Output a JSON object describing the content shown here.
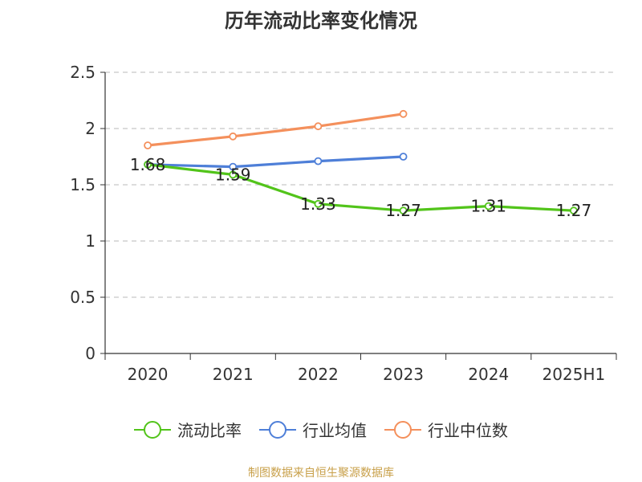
{
  "chart_data": {
    "type": "line",
    "title": "历年流动比率变化情况",
    "categories": [
      "2020",
      "2021",
      "2022",
      "2023",
      "2024",
      "2025H1"
    ],
    "ylim": [
      0,
      2.5
    ],
    "yticks": [
      "0",
      "0.5",
      "1",
      "1.5",
      "2",
      "2.5"
    ],
    "grid": true,
    "legend_position": "bottom",
    "series": [
      {
        "name": "流动比率",
        "color": "#52c41a",
        "values": [
          1.68,
          1.59,
          1.33,
          1.27,
          1.31,
          1.27
        ],
        "labels": [
          "1.68",
          "1.59",
          "1.33",
          "1.27",
          "1.31",
          "1.27"
        ]
      },
      {
        "name": "行业均值",
        "color": "#4e7fd8",
        "values": [
          1.68,
          1.66,
          1.71,
          1.75,
          null,
          null
        ]
      },
      {
        "name": "行业中位数",
        "color": "#f4905c",
        "values": [
          1.85,
          1.93,
          2.02,
          2.13,
          null,
          null
        ]
      }
    ]
  },
  "source": "制图数据来自恒生聚源数据库"
}
